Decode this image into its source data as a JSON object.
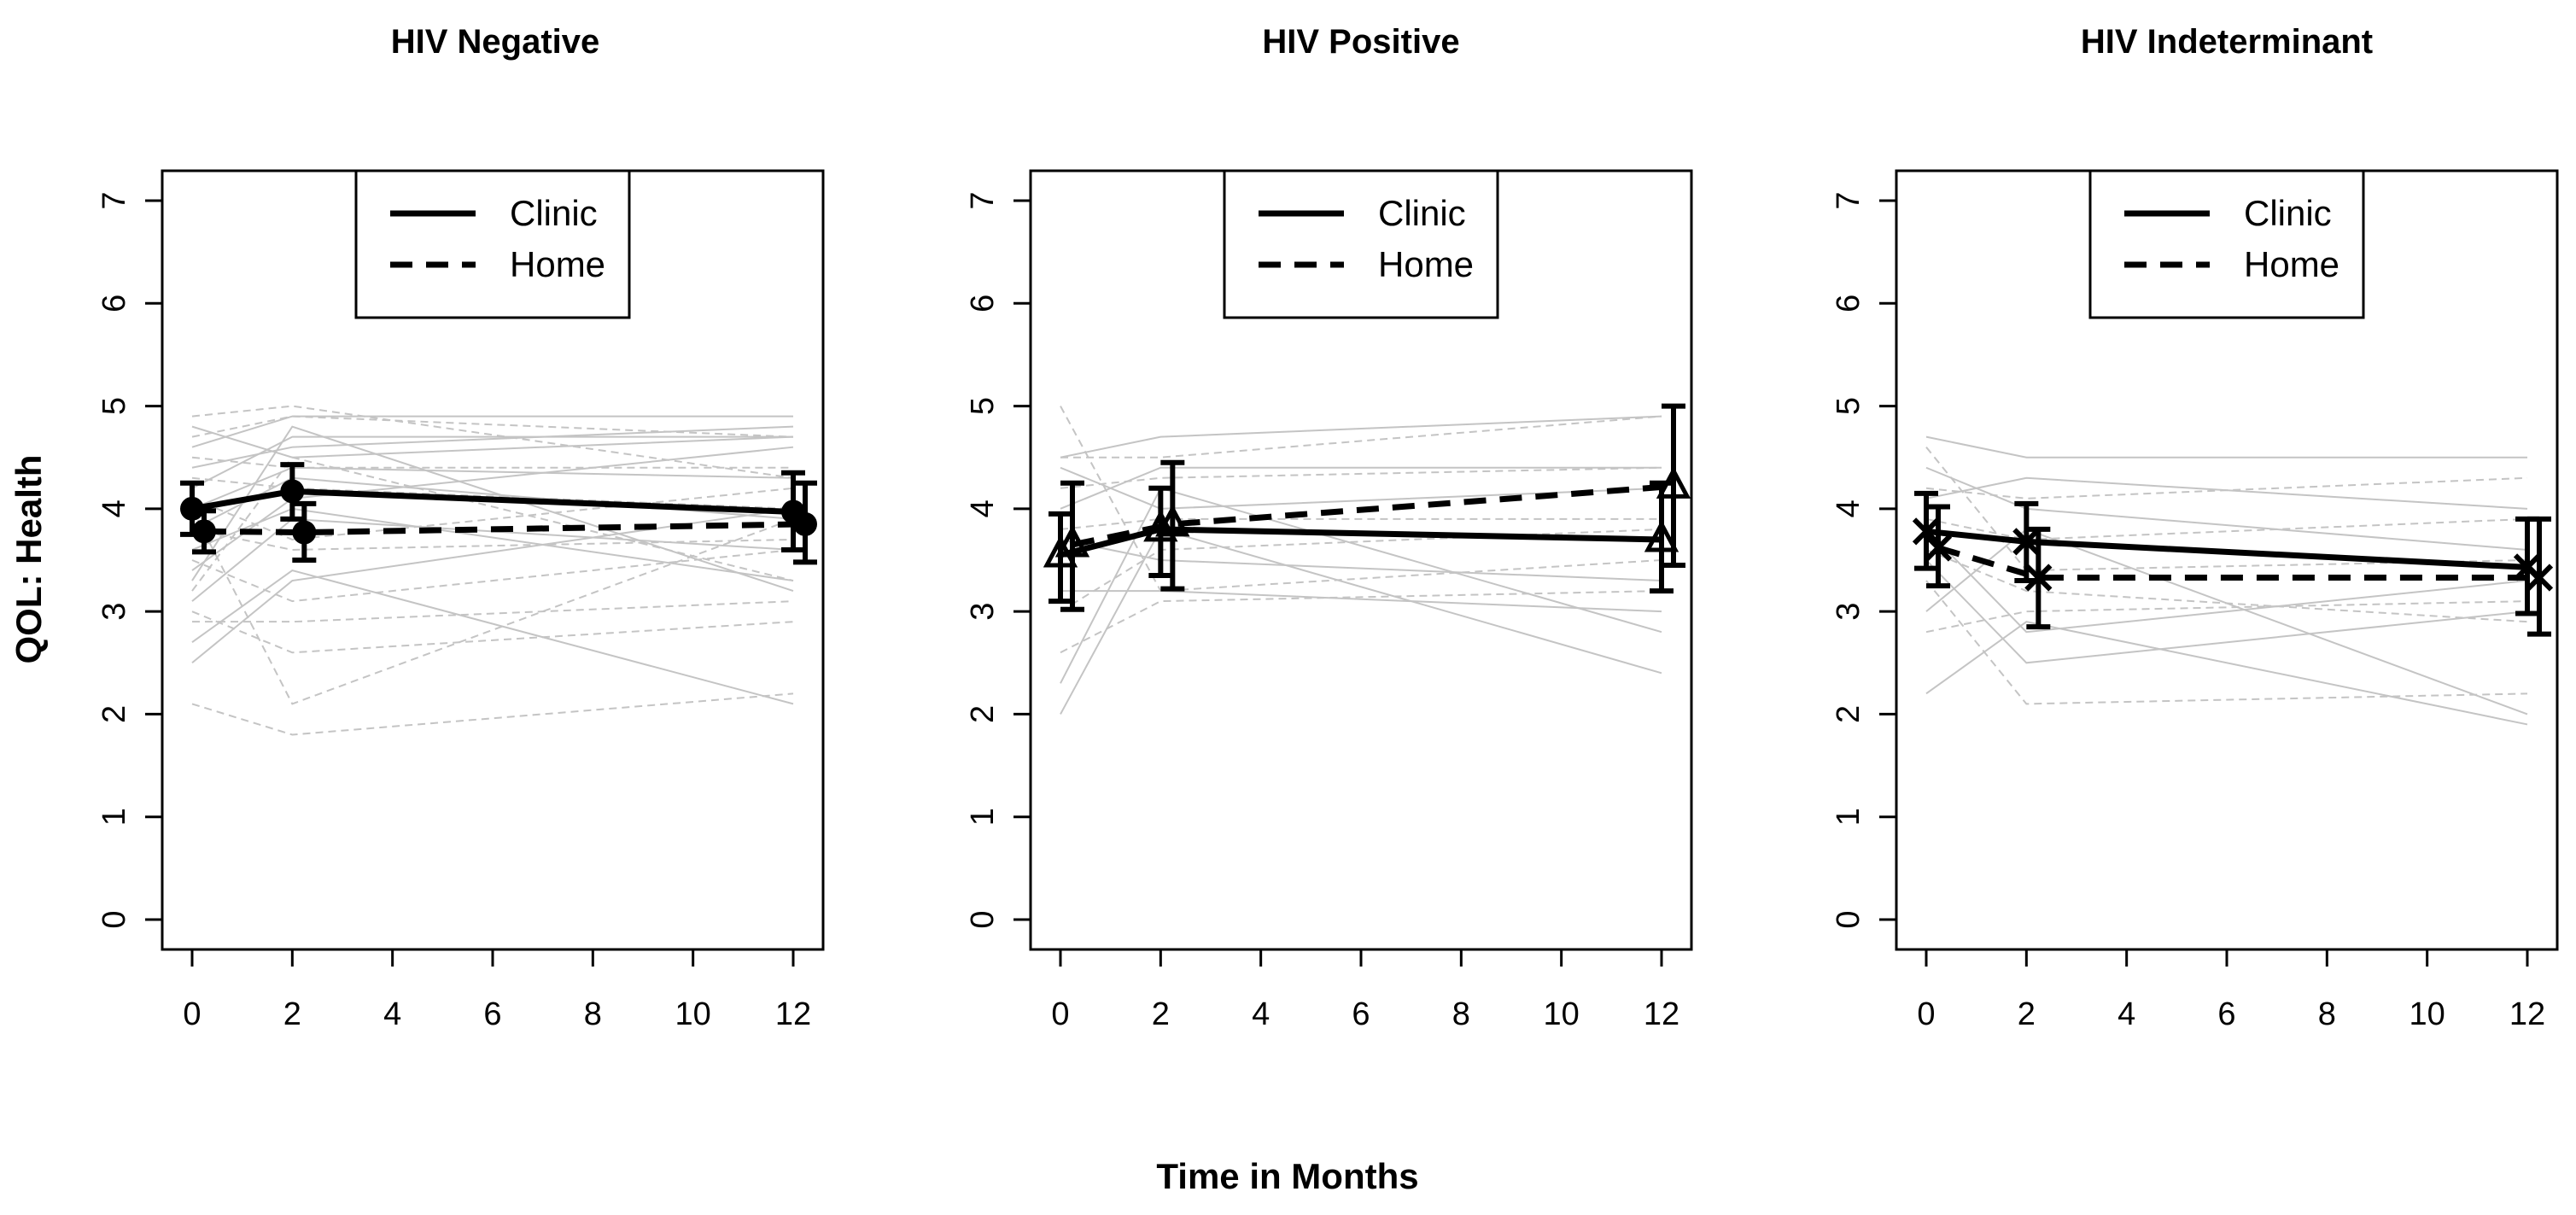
{
  "figure": {
    "ylabel": "QOL: Health",
    "xlabel": "Time in Months"
  },
  "chart_data": [
    {
      "type": "line",
      "title": "HIV Negative",
      "xlabel": "Time in Months",
      "ylabel": "QOL: Health",
      "xlim": [
        0,
        12
      ],
      "ylim": [
        0,
        7
      ],
      "x_ticks": [
        0,
        2,
        4,
        6,
        8,
        10,
        12
      ],
      "y_ticks": [
        0,
        1,
        2,
        3,
        4,
        5,
        6,
        7
      ],
      "legend": {
        "position": "top-center",
        "entries": [
          "Clinic",
          "Home"
        ]
      },
      "marker": "circle",
      "series": [
        {
          "name": "Clinic",
          "style": "solid",
          "x": [
            0,
            2,
            12
          ],
          "y": [
            4.0,
            4.17,
            3.97
          ],
          "lower": [
            3.75,
            3.9,
            3.6
          ],
          "upper": [
            4.25,
            4.43,
            4.35
          ]
        },
        {
          "name": "Home",
          "style": "dashed",
          "x": [
            0,
            2,
            12
          ],
          "y": [
            3.78,
            3.77,
            3.85
          ],
          "lower": [
            3.58,
            3.5,
            3.48
          ],
          "upper": [
            3.98,
            4.05,
            4.25
          ]
        }
      ],
      "individual_lines": {
        "clinic": [
          [
            3.4,
            4.1,
            4.6
          ],
          [
            4.2,
            4.7,
            4.7
          ],
          [
            2.7,
            3.4,
            2.1
          ],
          [
            3.8,
            4.3,
            3.9
          ],
          [
            4.6,
            4.9,
            4.9
          ],
          [
            3.1,
            3.9,
            3.6
          ],
          [
            4.0,
            4.4,
            4.3
          ],
          [
            2.5,
            3.3,
            4.0
          ],
          [
            4.4,
            4.6,
            4.8
          ],
          [
            3.6,
            4.0,
            3.3
          ],
          [
            4.8,
            4.5,
            4.7
          ],
          [
            3.3,
            4.8,
            3.2
          ]
        ],
        "home": [
          [
            4.9,
            5.0,
            4.3
          ],
          [
            3.0,
            2.6,
            2.9
          ],
          [
            2.1,
            1.8,
            2.2
          ],
          [
            4.5,
            4.4,
            4.4
          ],
          [
            3.5,
            3.1,
            3.6
          ],
          [
            4.1,
            3.7,
            4.2
          ],
          [
            2.9,
            2.9,
            3.1
          ],
          [
            4.7,
            4.9,
            4.7
          ],
          [
            3.8,
            3.6,
            3.7
          ],
          [
            4.3,
            4.2,
            4.0
          ],
          [
            3.2,
            4.5,
            3.3
          ],
          [
            4.0,
            2.1,
            3.9
          ]
        ]
      }
    },
    {
      "type": "line",
      "title": "HIV Positive",
      "xlabel": "Time in Months",
      "ylabel": "QOL: Health",
      "xlim": [
        0,
        12
      ],
      "ylim": [
        0,
        7
      ],
      "x_ticks": [
        0,
        2,
        4,
        6,
        8,
        10,
        12
      ],
      "y_ticks": [
        0,
        1,
        2,
        3,
        4,
        5,
        6,
        7
      ],
      "legend": {
        "position": "top-center",
        "entries": [
          "Clinic",
          "Home"
        ]
      },
      "marker": "triangle",
      "series": [
        {
          "name": "Clinic",
          "style": "solid",
          "x": [
            0,
            2,
            12
          ],
          "y": [
            3.55,
            3.8,
            3.7
          ],
          "lower": [
            3.1,
            3.35,
            3.2
          ],
          "upper": [
            3.95,
            4.2,
            4.25
          ]
        },
        {
          "name": "Home",
          "style": "dashed",
          "x": [
            0,
            2,
            12
          ],
          "y": [
            3.65,
            3.85,
            4.22
          ],
          "lower": [
            3.02,
            3.22,
            3.45
          ],
          "upper": [
            4.25,
            4.45,
            5.0
          ]
        }
      ],
      "individual_lines": {
        "clinic": [
          [
            2.0,
            3.8,
            2.4
          ],
          [
            4.5,
            4.7,
            4.9
          ],
          [
            3.2,
            3.2,
            3.0
          ],
          [
            4.0,
            4.4,
            4.4
          ],
          [
            2.3,
            4.2,
            2.8
          ],
          [
            3.7,
            3.5,
            3.3
          ],
          [
            4.4,
            4.0,
            4.2
          ]
        ],
        "home": [
          [
            5.0,
            3.2,
            3.5
          ],
          [
            3.0,
            3.6,
            3.8
          ],
          [
            4.2,
            4.3,
            4.4
          ],
          [
            3.8,
            3.9,
            3.9
          ],
          [
            2.6,
            3.1,
            3.2
          ],
          [
            4.5,
            4.5,
            4.9
          ]
        ]
      }
    },
    {
      "type": "line",
      "title": "HIV Indeterminant",
      "xlabel": "Time in Months",
      "ylabel": "QOL: Health",
      "xlim": [
        0,
        12
      ],
      "ylim": [
        0,
        7
      ],
      "x_ticks": [
        0,
        2,
        4,
        6,
        8,
        10,
        12
      ],
      "y_ticks": [
        0,
        1,
        2,
        3,
        4,
        5,
        6,
        7
      ],
      "legend": {
        "position": "top-center",
        "entries": [
          "Clinic",
          "Home"
        ]
      },
      "marker": "cross",
      "series": [
        {
          "name": "Clinic",
          "style": "solid",
          "x": [
            0,
            2,
            12
          ],
          "y": [
            3.78,
            3.68,
            3.43
          ],
          "lower": [
            3.42,
            3.3,
            2.98
          ],
          "upper": [
            4.15,
            4.05,
            3.9
          ]
        },
        {
          "name": "Home",
          "style": "dashed",
          "x": [
            0,
            2,
            12
          ],
          "y": [
            3.62,
            3.33,
            3.33
          ],
          "lower": [
            3.25,
            2.85,
            2.78
          ],
          "upper": [
            4.02,
            3.8,
            3.9
          ]
        }
      ],
      "individual_lines": {
        "clinic": [
          [
            2.2,
            2.9,
            1.9
          ],
          [
            4.7,
            4.5,
            4.5
          ],
          [
            3.5,
            2.5,
            3.0
          ],
          [
            4.1,
            4.3,
            4.0
          ],
          [
            3.0,
            3.8,
            2.0
          ],
          [
            4.4,
            4.0,
            3.6
          ],
          [
            3.8,
            2.8,
            3.3
          ]
        ],
        "home": [
          [
            4.6,
            3.4,
            3.5
          ],
          [
            3.3,
            2.1,
            2.2
          ],
          [
            4.2,
            4.1,
            4.3
          ],
          [
            3.9,
            3.7,
            3.9
          ],
          [
            2.8,
            3.0,
            3.1
          ],
          [
            3.6,
            3.2,
            2.9
          ]
        ]
      }
    }
  ]
}
